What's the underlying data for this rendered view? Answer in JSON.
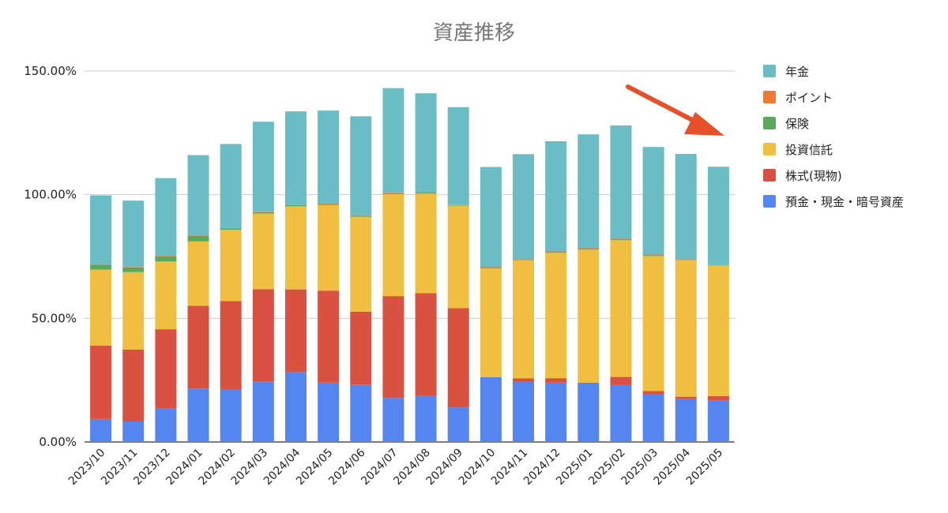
{
  "chart_data": {
    "type": "bar",
    "stacked": true,
    "title": "資産推移",
    "xlabel": "",
    "ylabel": "",
    "ylim": [
      0,
      150
    ],
    "y_ticks": [
      "0.00%",
      "50.00%",
      "100.00%",
      "150.00%"
    ],
    "grid": true,
    "legend_position": "right",
    "categories": [
      "2023/10",
      "2023/11",
      "2023/12",
      "2024/01",
      "2024/02",
      "2024/03",
      "2024/04",
      "2024/05",
      "2024/06",
      "2024/07",
      "2024/08",
      "2024/09",
      "2024/10",
      "2024/11",
      "2024/12",
      "2025/01",
      "2025/02",
      "2025/03",
      "2025/04",
      "2025/05"
    ],
    "series": [
      {
        "name": "預金・現金・暗号資産",
        "color": "#5585EE",
        "values": [
          9.3,
          8.3,
          13.5,
          21.6,
          21.2,
          24.5,
          28.2,
          24.0,
          23.2,
          17.8,
          18.8,
          14.0,
          26.2,
          24.4,
          24.0,
          24.0,
          23.0,
          19.3,
          17.3,
          16.8
        ]
      },
      {
        "name": "株式(現物)",
        "color": "#D95140",
        "values": [
          29.7,
          29.1,
          32.1,
          33.5,
          35.8,
          37.3,
          33.5,
          37.2,
          29.5,
          41.2,
          41.4,
          40.1,
          0.0,
          1.3,
          1.8,
          0.0,
          3.3,
          1.3,
          1.0,
          1.8
        ]
      },
      {
        "name": "投資信託",
        "color": "#F0BF41",
        "values": [
          30.7,
          31.3,
          27.4,
          26.0,
          28.8,
          30.6,
          33.6,
          34.6,
          38.4,
          41.2,
          40.2,
          41.5,
          44.0,
          47.8,
          50.7,
          53.8,
          55.3,
          54.6,
          55.3,
          52.8
        ]
      },
      {
        "name": "保険",
        "color": "#58A95B",
        "values": [
          2.0,
          1.9,
          2.1,
          2.2,
          0.5,
          0.5,
          0.5,
          0.4,
          0.4,
          0.4,
          0.4,
          0.2,
          0.3,
          0.2,
          0.4,
          0.4,
          0.4,
          0.4,
          0.1,
          0.1
        ]
      },
      {
        "name": "ポイント",
        "color": "#EE7A35",
        "values": [
          0.2,
          0.2,
          0.2,
          0.2,
          0.2,
          0.2,
          0.2,
          0.2,
          0.2,
          0.2,
          0.2,
          0.2,
          0.2,
          0.2,
          0.2,
          0.2,
          0.2,
          0.2,
          0.2,
          0.2
        ]
      },
      {
        "name": "年金",
        "color": "#6ABCC5",
        "values": [
          27.8,
          26.8,
          31.4,
          32.5,
          34.0,
          36.4,
          37.7,
          37.6,
          40.0,
          42.3,
          40.0,
          39.4,
          40.5,
          42.5,
          44.5,
          46.0,
          45.8,
          43.5,
          42.6,
          39.6
        ]
      }
    ],
    "annotation": {
      "type": "arrow",
      "color": "#E8502C",
      "direction": "down-right"
    }
  }
}
